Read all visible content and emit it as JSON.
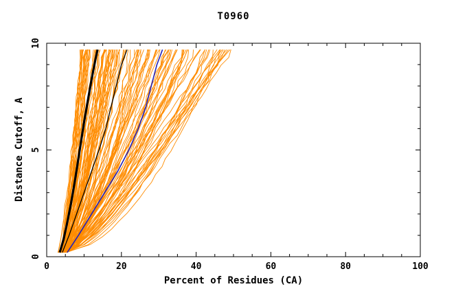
{
  "chart_data": {
    "type": "line",
    "title": "T0960",
    "xlabel": "Percent of Residues (CA)",
    "ylabel": "Distance Cutoff, A",
    "xlim": [
      0,
      100
    ],
    "ylim": [
      0,
      10
    ],
    "xticks": [
      0,
      20,
      40,
      60,
      80,
      100
    ],
    "yticks": [
      0,
      5,
      10
    ],
    "x_minor_step": 5,
    "y_minor_step": 1,
    "grid": false,
    "legend": "none",
    "axis_color": "#000000",
    "background": "#ffffff",
    "series": [
      {
        "name": "model-thin-black",
        "color": "#000000",
        "width": 1.3,
        "points": [
          [
            4.2,
            0.2
          ],
          [
            6.0,
            1.0
          ],
          [
            8.0,
            2.0
          ],
          [
            10.0,
            3.0
          ],
          [
            12.0,
            4.0
          ],
          [
            14.0,
            5.0
          ],
          [
            15.8,
            6.0
          ],
          [
            17.2,
            7.0
          ],
          [
            18.6,
            8.0
          ],
          [
            20.0,
            9.0
          ],
          [
            21.5,
            9.7
          ]
        ]
      },
      {
        "name": "model-blue",
        "color": "#2222bb",
        "width": 1.6,
        "points": [
          [
            5.5,
            0.2
          ],
          [
            8.5,
            1.0
          ],
          [
            12.0,
            2.0
          ],
          [
            15.5,
            3.0
          ],
          [
            19.0,
            4.0
          ],
          [
            22.0,
            5.0
          ],
          [
            24.5,
            6.0
          ],
          [
            26.5,
            7.0
          ],
          [
            28.0,
            8.0
          ],
          [
            29.5,
            9.0
          ],
          [
            31.0,
            9.7
          ]
        ]
      },
      {
        "name": "model-thick-black",
        "color": "#000000",
        "width": 3.2,
        "points": [
          [
            3.5,
            0.2
          ],
          [
            4.5,
            0.8
          ],
          [
            5.5,
            1.6
          ],
          [
            6.5,
            2.5
          ],
          [
            7.5,
            3.5
          ],
          [
            8.3,
            4.4
          ],
          [
            9.2,
            5.4
          ],
          [
            10.0,
            6.3
          ],
          [
            11.0,
            7.3
          ],
          [
            12.0,
            8.3
          ],
          [
            13.0,
            9.2
          ],
          [
            13.6,
            9.7
          ]
        ]
      }
    ],
    "ensemble": {
      "name": "server-model-curves",
      "color": "#FF8C00",
      "count": 120,
      "seed": 42,
      "x_start_range": [
        3.0,
        5.5
      ],
      "x_top_range": [
        9.0,
        50.0
      ],
      "exponent_range": [
        0.55,
        0.9
      ],
      "y_range": [
        0.2,
        9.7
      ],
      "stroke_width": 0.9
    }
  }
}
